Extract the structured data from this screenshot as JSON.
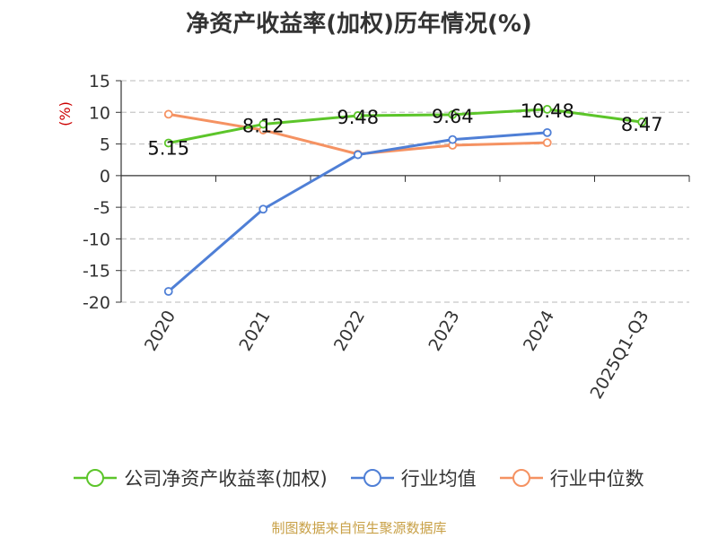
{
  "chart_data": {
    "type": "line",
    "title": "净资产收益率(加权)历年情况(%)",
    "ylabel": "(%)",
    "xlabel": "",
    "categories": [
      "2020",
      "2021",
      "2022",
      "2023",
      "2024",
      "2025Q1-Q3"
    ],
    "yticks": [
      15,
      10,
      5,
      0,
      -5,
      -10,
      -15,
      -20
    ],
    "ylim": [
      -20,
      15
    ],
    "grid": true,
    "legend_position": "bottom",
    "series": [
      {
        "name": "公司净资产收益率(加权)",
        "color": "#5cc52a",
        "values": [
          5.15,
          8.12,
          9.48,
          9.64,
          10.48,
          8.47
        ],
        "labels": [
          "5.15",
          "8.12",
          "9.48",
          "9.64",
          "10.48",
          "8.47"
        ]
      },
      {
        "name": "行业均值",
        "color": "#4f7fd6",
        "values": [
          -18.3,
          -5.3,
          3.3,
          5.7,
          6.8,
          null
        ]
      },
      {
        "name": "行业中位数",
        "color": "#f59262",
        "values": [
          9.7,
          7.2,
          3.4,
          4.8,
          5.2,
          null
        ]
      }
    ]
  },
  "source": "制图数据来自恒生聚源数据库"
}
